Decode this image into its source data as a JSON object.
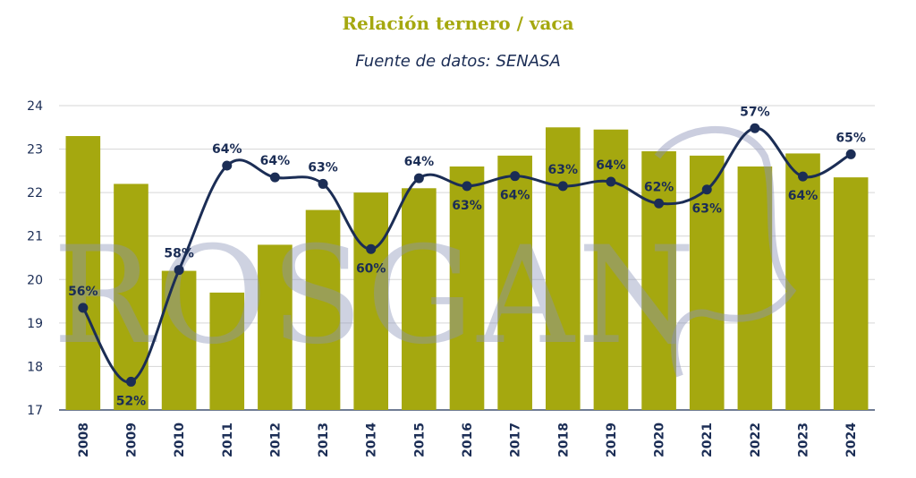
{
  "colors": {
    "title": "#a5a80f",
    "subtitle": "#1b2d55",
    "bar": "#a5a80f",
    "line": "#1b2d55",
    "grid": "#d6d6d6",
    "axis_text": "#1b2d55",
    "watermark": "#8b93b8"
  },
  "watermark": {
    "text": "ROSGAN"
  },
  "chart_data": {
    "type": "bar",
    "title": "Relación ternero / vaca",
    "subtitle": "Fuente de datos: SENASA",
    "xlabel": "",
    "ylabel": "",
    "ylim": [
      17,
      24
    ],
    "yticks": [
      17,
      18,
      19,
      20,
      21,
      22,
      23,
      24
    ],
    "grid": true,
    "categories": [
      "2008",
      "2009",
      "2010",
      "2011",
      "2012",
      "2013",
      "2014",
      "2015",
      "2016",
      "2017",
      "2018",
      "2019",
      "2020",
      "2021",
      "2022",
      "2023",
      "2024"
    ],
    "series": [
      {
        "type": "bar",
        "values": [
          23.3,
          22.2,
          20.2,
          19.7,
          20.8,
          21.6,
          22.0,
          22.1,
          22.6,
          22.85,
          23.5,
          23.45,
          22.95,
          22.85,
          22.6,
          22.9,
          22.35
        ]
      },
      {
        "type": "line",
        "values": [
          19.35,
          17.65,
          20.22,
          22.62,
          22.35,
          22.2,
          20.7,
          22.33,
          22.15,
          22.38,
          22.15,
          22.25,
          21.75,
          22.07,
          23.48,
          22.37,
          22.88
        ],
        "labels": [
          "56%",
          "52%",
          "58%",
          "64%",
          "64%",
          "63%",
          "60%",
          "64%",
          "63%",
          "64%",
          "63%",
          "64%",
          "62%",
          "63%",
          "57%",
          "64%",
          "65%"
        ],
        "label_positions": [
          "above",
          "below",
          "above",
          "above",
          "above",
          "above",
          "below",
          "above",
          "below",
          "below",
          "above",
          "above",
          "above",
          "below",
          "above",
          "below",
          "above"
        ]
      }
    ]
  }
}
